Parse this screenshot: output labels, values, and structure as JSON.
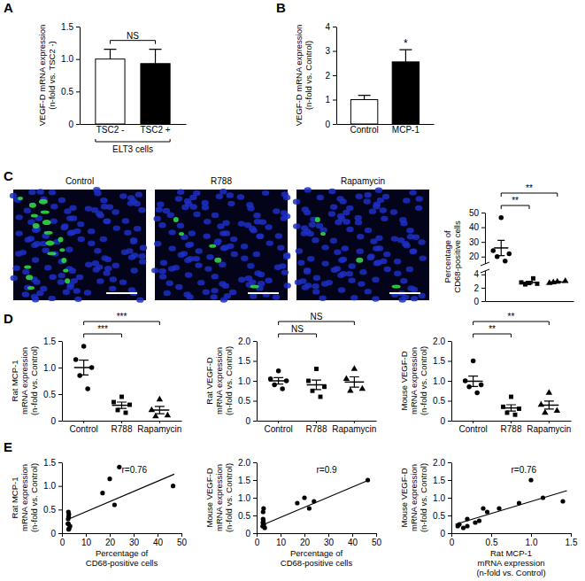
{
  "chart_data": [
    {
      "type": "bar",
      "label": "A",
      "ylabel": [
        "VEGF-D mRNA expression",
        "(n-fold vs. TSC2 -)"
      ],
      "categories": [
        "TSC2 -",
        "TSC2 +"
      ],
      "group_label": "ELT3 cells",
      "values": [
        1.0,
        0.93
      ],
      "errors": [
        0.15,
        0.22
      ],
      "colors": [
        "#ffffff",
        "#000000"
      ],
      "ylim": [
        0,
        1.5
      ],
      "yticks": [
        0,
        0.5,
        {
          "value": 1,
          "label": "1.0"
        },
        1.5
      ],
      "comparisons": [
        {
          "text": "NS",
          "between": [
            0,
            1
          ]
        }
      ]
    },
    {
      "type": "bar",
      "label": "B",
      "ylabel": [
        "VEGF-D mRNA expression",
        "(n-fold vs. Control)"
      ],
      "categories": [
        "Control",
        "MCP-1"
      ],
      "values": [
        1.0,
        2.55
      ],
      "errors": [
        0.18,
        0.5
      ],
      "colors": [
        "#ffffff",
        "#000000"
      ],
      "ylim": [
        0,
        4
      ],
      "yticks": [
        0,
        1,
        2,
        3,
        4
      ],
      "annotations": [
        {
          "text": "*",
          "at": 1
        }
      ]
    },
    {
      "type": "image",
      "label": "C",
      "titles": [
        "Control",
        "R788",
        "Rapamycin"
      ]
    },
    {
      "type": "dot",
      "ylabel": [
        "Percentage of",
        "CD68-positive cells"
      ],
      "ylim": [
        0,
        50
      ],
      "ybreak": [
        4.5,
        15
      ],
      "yticks": [
        0,
        2,
        4,
        20,
        30,
        40,
        50
      ],
      "groups": [
        {
          "marker": "circle",
          "values": [
            46.5,
            24,
            22,
            20,
            17
          ],
          "mean": 25.9,
          "error": 5.2
        },
        {
          "marker": "square",
          "values": [
            2.7,
            2.8,
            2.6,
            2.5,
            3.4
          ],
          "mean": 2.8,
          "error": 0.16
        },
        {
          "marker": "triangle",
          "values": [
            2.9,
            2.7,
            3.0,
            2.8
          ],
          "mean": 2.85,
          "error": 0.07
        }
      ],
      "comparisons": [
        {
          "text": "**",
          "between": [
            0,
            1
          ]
        },
        {
          "text": "**",
          "between": [
            0,
            2
          ]
        }
      ]
    },
    {
      "type": "dot",
      "label": "D",
      "ylabel": [
        "Rat MCP-1",
        "mRNA expression",
        "(n-fold vs. Control)"
      ],
      "categories": [
        "Control",
        "R788",
        "Rapamycin"
      ],
      "ylim": [
        0,
        1.5
      ],
      "yticks": [
        0,
        0.5,
        {
          "value": 1,
          "label": "1.0"
        },
        1.5
      ],
      "groups": [
        {
          "marker": "circle",
          "values": [
            1.4,
            1.15,
            1.0,
            0.85,
            0.6
          ],
          "mean": 1.0,
          "error": 0.14
        },
        {
          "marker": "square",
          "values": [
            0.45,
            0.35,
            0.3,
            0.2,
            0.15
          ],
          "mean": 0.29,
          "error": 0.06
        },
        {
          "marker": "triangle",
          "values": [
            0.4,
            0.2,
            0.1,
            0.08
          ],
          "mean": 0.2,
          "error": 0.07
        }
      ],
      "comparisons": [
        {
          "text": "***",
          "between": [
            0,
            1
          ]
        },
        {
          "text": "***",
          "between": [
            0,
            2
          ]
        }
      ]
    },
    {
      "type": "dot",
      "ylabel": [
        "Rat VEGF-D",
        "mRNA expression",
        "(n-fold vs. Control)"
      ],
      "categories": [
        "Control",
        "R788",
        "Rapamycin"
      ],
      "ylim": [
        0,
        2
      ],
      "yticks": [
        0,
        0.5,
        {
          "value": 1,
          "label": "1.0"
        },
        1.5,
        {
          "value": 2,
          "label": "2.0"
        }
      ],
      "groups": [
        {
          "marker": "circle",
          "values": [
            1.25,
            1.05,
            1.0,
            0.9,
            0.8
          ],
          "mean": 1.0,
          "error": 0.08
        },
        {
          "marker": "square",
          "values": [
            1.3,
            1.0,
            0.85,
            0.75,
            0.6
          ],
          "mean": 0.9,
          "error": 0.12
        },
        {
          "marker": "triangle",
          "values": [
            1.3,
            1.05,
            0.8,
            0.75
          ],
          "mean": 0.97,
          "error": 0.13
        }
      ],
      "comparisons": [
        {
          "text": "NS",
          "between": [
            0,
            1
          ]
        },
        {
          "text": "NS",
          "between": [
            0,
            2
          ]
        }
      ]
    },
    {
      "type": "dot",
      "ylabel": [
        "Mouse VEGF-D",
        "mRNA expression",
        "(n-fold vs. Control)"
      ],
      "categories": [
        "Control",
        "R788",
        "Rapamycin"
      ],
      "ylim": [
        0,
        2
      ],
      "yticks": [
        0,
        0.5,
        {
          "value": 1,
          "label": "1.0"
        },
        1.5,
        {
          "value": 2,
          "label": "2.0"
        }
      ],
      "groups": [
        {
          "marker": "circle",
          "values": [
            1.5,
            1.0,
            0.9,
            0.85,
            0.7
          ],
          "mean": 0.99,
          "error": 0.13
        },
        {
          "marker": "square",
          "values": [
            0.6,
            0.35,
            0.3,
            0.2,
            0.15
          ],
          "mean": 0.32,
          "error": 0.08
        },
        {
          "marker": "triangle",
          "values": [
            0.7,
            0.4,
            0.25,
            0.2
          ],
          "mean": 0.39,
          "error": 0.1
        }
      ],
      "comparisons": [
        {
          "text": "**",
          "between": [
            0,
            1
          ]
        },
        {
          "text": "**",
          "between": [
            0,
            2
          ]
        }
      ]
    },
    {
      "type": "scatter",
      "label": "E",
      "xlabel": [
        "Percentage of",
        "CD68-positive cells"
      ],
      "ylabel": [
        "Rat MCP-1",
        "mRNA expression",
        "(n-fold vs. Control)"
      ],
      "x": [
        46.5,
        24,
        22,
        20,
        17,
        2.7,
        2.8,
        2.6,
        2.5,
        3.4,
        2.9,
        2.7,
        3.0,
        2.8
      ],
      "values": [
        1.0,
        1.4,
        0.6,
        1.15,
        0.85,
        0.45,
        0.35,
        0.3,
        0.2,
        0.15,
        0.4,
        0.2,
        0.1,
        0.08
      ],
      "xlim": [
        0,
        50
      ],
      "xticks": [
        0,
        10,
        20,
        30,
        40,
        50
      ],
      "ylim": [
        0,
        1.5
      ],
      "yticks": [
        0,
        0.5,
        {
          "value": 1,
          "label": "1.0"
        },
        1.5
      ],
      "r_label": "r=0.76",
      "fit": {
        "x": [
          2,
          47
        ],
        "y": [
          0.28,
          1.25
        ]
      }
    },
    {
      "type": "scatter",
      "xlabel": [
        "Percentage of",
        "CD68-positive cells"
      ],
      "ylabel": [
        "Mouse VEGF-D",
        "mRNA expression",
        "(n-fold vs. Control)"
      ],
      "x": [
        46.5,
        24,
        22,
        20,
        17,
        2.7,
        2.8,
        2.6,
        2.5,
        3.4,
        2.9,
        2.7,
        3.0,
        2.8
      ],
      "values": [
        1.5,
        0.9,
        0.7,
        1.0,
        0.85,
        0.6,
        0.35,
        0.3,
        0.2,
        0.15,
        0.7,
        0.4,
        0.25,
        0.2
      ],
      "xlim": [
        0,
        50
      ],
      "xticks": [
        0,
        10,
        20,
        30,
        40,
        50
      ],
      "ylim": [
        0,
        2
      ],
      "yticks": [
        0,
        0.5,
        {
          "value": 1,
          "label": "1.0"
        },
        1.5,
        {
          "value": 2,
          "label": "2.0"
        }
      ],
      "r_label": "r=0.9",
      "fit": {
        "x": [
          2,
          47
        ],
        "y": [
          0.22,
          1.5
        ]
      }
    },
    {
      "type": "scatter",
      "xlabel": [
        "Rat MCP-1",
        "mRNA expression",
        "(n-fold vs. Control)"
      ],
      "ylabel": [
        "Mouse VEGF-D",
        "mRNA expression",
        "(n-fold vs. Control)"
      ],
      "x": [
        1.0,
        1.4,
        0.6,
        1.15,
        0.85,
        0.45,
        0.35,
        0.3,
        0.2,
        0.15,
        0.4,
        0.2,
        0.1,
        0.08
      ],
      "values": [
        1.5,
        0.9,
        0.7,
        1.0,
        0.85,
        0.6,
        0.35,
        0.3,
        0.2,
        0.15,
        0.7,
        0.4,
        0.25,
        0.2
      ],
      "xlim": [
        0,
        1.5
      ],
      "xticks": [
        0,
        0.5,
        {
          "value": 1,
          "label": "1.0"
        },
        1.5
      ],
      "ylim": [
        0,
        2
      ],
      "yticks": [
        0,
        0.5,
        {
          "value": 1,
          "label": "1.0"
        },
        1.5,
        {
          "value": 2,
          "label": "2.0"
        }
      ],
      "r_label": "r=0.76",
      "fit": {
        "x": [
          0.05,
          1.45
        ],
        "y": [
          0.25,
          1.2
        ]
      }
    }
  ]
}
